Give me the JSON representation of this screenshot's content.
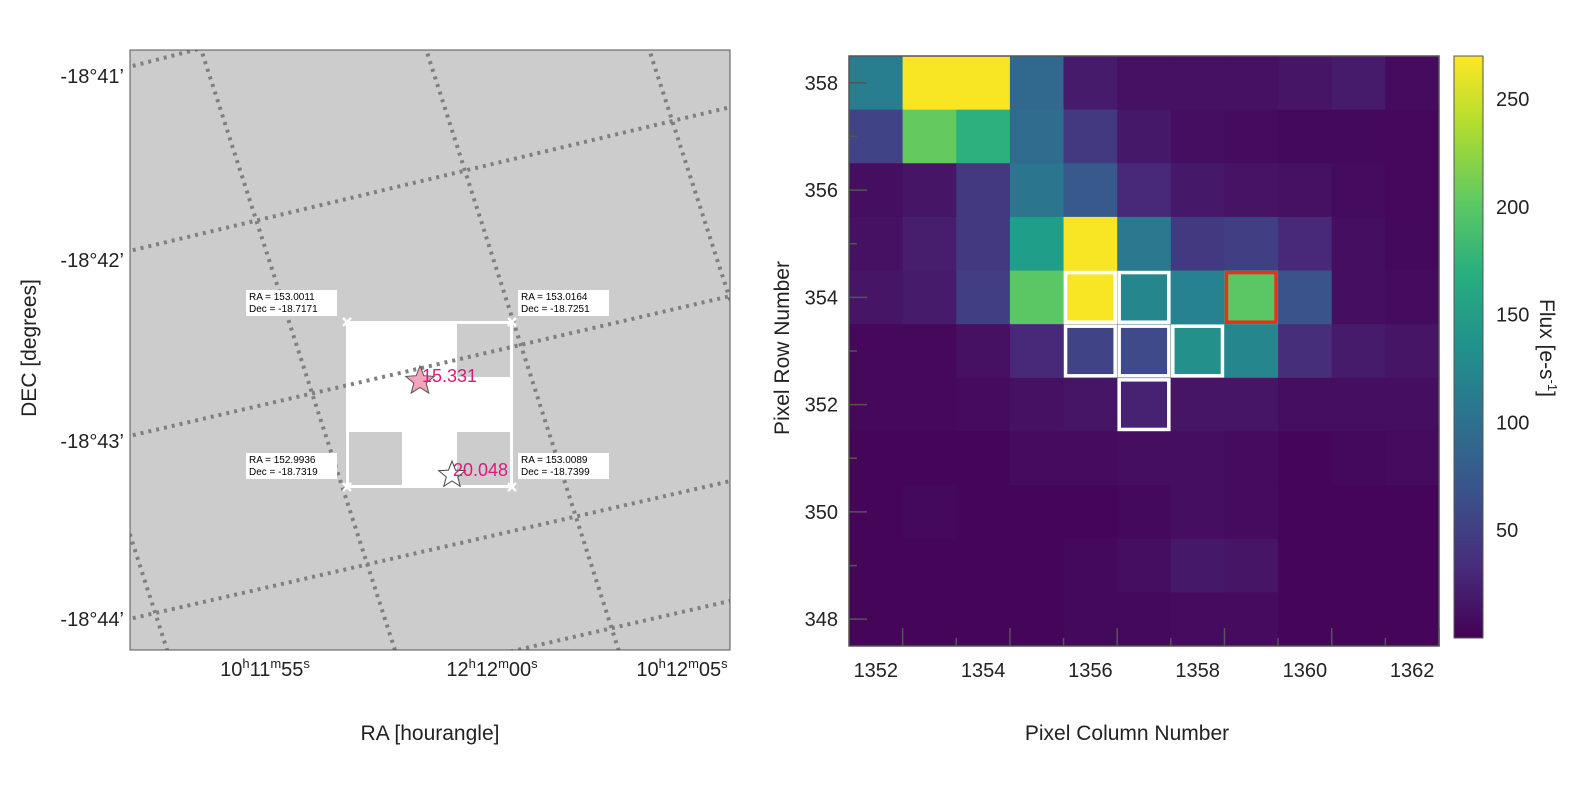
{
  "colors": {
    "sky_background": "#cccccc",
    "footprint": "#ffffff",
    "grid_line": "#7f7f7f",
    "target_star": "#f5a3b8",
    "star_label": "#e0177b",
    "highlight_aperture": "#e8301c",
    "aperture": "#ffffff"
  },
  "sky_panel": {
    "xlabel": "RA [hourangle]",
    "ylabel": "DEC [degrees]",
    "ra_ticks": [
      {
        "h": "10",
        "hs": "h",
        "m": "11",
        "ms": "m",
        "s": "55",
        "ss": "s"
      },
      {
        "h": "",
        "hs": "",
        "m": "12",
        "ms": "h",
        "s": "12",
        "ss": "m",
        "tail": "00",
        "tails": "s"
      },
      {
        "h": "10",
        "hs": "h",
        "m": "12",
        "ms": "m",
        "s": "05",
        "ss": "s"
      }
    ],
    "dec_ticks": [
      "-18°41’",
      "-18°42’",
      "-18°43’",
      "-18°44’"
    ],
    "corners": [
      {
        "ra": "RA = 153.0011",
        "dec": "Dec = -18.7171"
      },
      {
        "ra": "RA = 153.0164",
        "dec": "Dec = -18.7251"
      },
      {
        "ra": "RA = 152.9936",
        "dec": "Dec = -18.7319"
      },
      {
        "ra": "RA = 153.0089",
        "dec": "Dec = -18.7399"
      }
    ],
    "stars": [
      {
        "mag": "15.331",
        "role": "target"
      },
      {
        "mag": "20.048",
        "role": "neighbor"
      }
    ]
  },
  "chart_data": {
    "type": "heatmap",
    "xlabel": "Pixel Column Number",
    "ylabel": "Pixel Row Number",
    "colorbar_label": "Flux [e-s",
    "colorbar_label_sup": "-1",
    "colorbar_label_end": "]",
    "x_range": [
      1352,
      1362
    ],
    "y_range": [
      348,
      358
    ],
    "x_ticks": [
      "1352",
      "1354",
      "1356",
      "1358",
      "1360",
      "1362"
    ],
    "y_ticks": [
      "358",
      "356",
      "354",
      "352",
      "350",
      "348"
    ],
    "colorbar_ticks": [
      "250",
      "200",
      "150",
      "100",
      "50"
    ],
    "vmin": 0,
    "vmax": 270,
    "rows_top_to_bottom": [
      358,
      357,
      356,
      355,
      354,
      353,
      352,
      351,
      350,
      349,
      348
    ],
    "flux": [
      [
        115,
        268,
        268,
        90,
        20,
        12,
        12,
        12,
        15,
        20,
        8
      ],
      [
        55,
        205,
        170,
        95,
        45,
        18,
        10,
        8,
        6,
        6,
        5
      ],
      [
        10,
        15,
        45,
        105,
        75,
        30,
        18,
        14,
        12,
        8,
        5
      ],
      [
        12,
        22,
        45,
        150,
        268,
        110,
        45,
        50,
        30,
        10,
        6
      ],
      [
        15,
        20,
        50,
        200,
        268,
        125,
        120,
        200,
        70,
        10,
        8
      ],
      [
        5,
        5,
        12,
        30,
        55,
        60,
        135,
        125,
        35,
        20,
        15
      ],
      [
        5,
        5,
        8,
        12,
        15,
        25,
        15,
        15,
        10,
        10,
        10
      ],
      [
        4,
        4,
        4,
        8,
        8,
        10,
        10,
        8,
        4,
        6,
        8
      ],
      [
        4,
        6,
        4,
        4,
        4,
        6,
        10,
        8,
        4,
        4,
        4
      ],
      [
        4,
        4,
        4,
        4,
        6,
        10,
        18,
        15,
        4,
        4,
        4
      ],
      [
        4,
        4,
        4,
        4,
        6,
        6,
        8,
        8,
        4,
        4,
        4
      ]
    ],
    "aperture_pixels": [
      {
        "col": 1356,
        "row": 354,
        "highlight": false
      },
      {
        "col": 1357,
        "row": 354,
        "highlight": false
      },
      {
        "col": 1356,
        "row": 353,
        "highlight": false
      },
      {
        "col": 1357,
        "row": 353,
        "highlight": false
      },
      {
        "col": 1358,
        "row": 353,
        "highlight": false
      },
      {
        "col": 1357,
        "row": 352,
        "highlight": false
      },
      {
        "col": 1359,
        "row": 354,
        "highlight": true
      }
    ]
  }
}
